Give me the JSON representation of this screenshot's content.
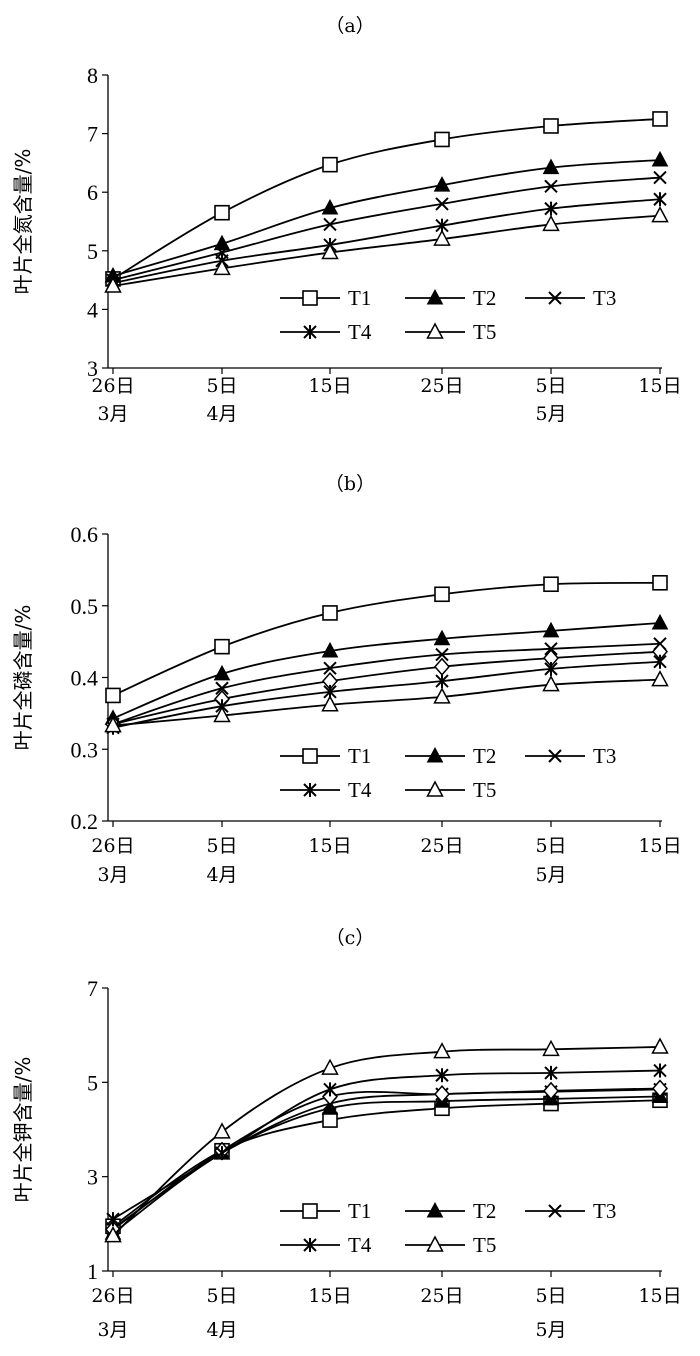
{
  "chart_data": [
    {
      "type": "line",
      "title": "（a）",
      "ylabel": "叶片全氮含量/%",
      "ylim": [
        3,
        8
      ],
      "yticks": [
        "3",
        "4",
        "5",
        "6",
        "7",
        "8"
      ],
      "x_tick_labels": [
        [
          "26日",
          "3月"
        ],
        [
          "5日",
          "4月"
        ],
        [
          "15日",
          ""
        ],
        [
          "25日",
          ""
        ],
        [
          "5日",
          "5月"
        ],
        [
          "15日",
          ""
        ]
      ],
      "x": [
        "3月26日",
        "4月5日",
        "4月15日",
        "4月25日",
        "5月5日",
        "5月15日"
      ],
      "legend_position": "center-right",
      "series": [
        {
          "name": "T1",
          "marker": "open-square",
          "values": [
            4.52,
            5.65,
            6.47,
            6.9,
            7.13,
            7.25
          ]
        },
        {
          "name": "T2",
          "marker": "filled-triangle",
          "values": [
            4.57,
            5.12,
            5.73,
            6.12,
            6.42,
            6.55
          ]
        },
        {
          "name": "T3",
          "marker": "cross",
          "values": [
            4.5,
            4.97,
            5.45,
            5.8,
            6.1,
            6.25
          ]
        },
        {
          "name": "T4",
          "marker": "asterisk",
          "values": [
            4.45,
            4.83,
            5.1,
            5.43,
            5.72,
            5.88
          ]
        },
        {
          "name": "T5",
          "marker": "open-triangle",
          "values": [
            4.4,
            4.7,
            4.97,
            5.2,
            5.45,
            5.6
          ]
        }
      ]
    },
    {
      "type": "line",
      "title": "（b）",
      "ylabel": "叶片全磷含量/%",
      "ylim": [
        0.2,
        0.6
      ],
      "yticks": [
        "0.2",
        "0.3",
        "0.4",
        "0.5",
        "0.6"
      ],
      "x_tick_labels": [
        [
          "26日",
          "3月"
        ],
        [
          "5日",
          "4月"
        ],
        [
          "15日",
          ""
        ],
        [
          "25日",
          ""
        ],
        [
          "5日",
          "5月"
        ],
        [
          "15日",
          ""
        ]
      ],
      "x": [
        "3月26日",
        "4月5日",
        "4月15日",
        "4月25日",
        "5月5日",
        "5月15日"
      ],
      "legend_position": "center-right",
      "series": [
        {
          "name": "T1",
          "marker": "open-square",
          "values": [
            0.375,
            0.443,
            0.49,
            0.516,
            0.53,
            0.532
          ]
        },
        {
          "name": "T2",
          "marker": "filled-triangle",
          "values": [
            0.343,
            0.405,
            0.437,
            0.454,
            0.465,
            0.476
          ]
        },
        {
          "name": "T3",
          "marker": "cross",
          "values": [
            0.335,
            0.385,
            0.413,
            0.432,
            0.44,
            0.447
          ]
        },
        {
          "name": "",
          "marker": "open-diamond",
          "values": [
            0.335,
            0.37,
            0.395,
            0.415,
            0.427,
            0.436
          ]
        },
        {
          "name": "T4",
          "marker": "asterisk",
          "values": [
            0.33,
            0.36,
            0.38,
            0.395,
            0.412,
            0.422
          ]
        },
        {
          "name": "T5",
          "marker": "open-triangle",
          "values": [
            0.333,
            0.347,
            0.362,
            0.373,
            0.39,
            0.397
          ]
        }
      ]
    },
    {
      "type": "line",
      "title": "（c）",
      "ylabel": "叶片全钾含量/%",
      "ylim": [
        1,
        7
      ],
      "yticks": [
        "1",
        "3",
        "5",
        "7"
      ],
      "x_tick_labels": [
        [
          "26日",
          "3月"
        ],
        [
          "5日",
          "4月"
        ],
        [
          "15日",
          ""
        ],
        [
          "25日",
          ""
        ],
        [
          "5日",
          "5月"
        ],
        [
          "15日",
          ""
        ]
      ],
      "x": [
        "3月26日",
        "4月5日",
        "4月15日",
        "4月25日",
        "5月5日",
        "5月15日"
      ],
      "legend_position": "center-right",
      "series": [
        {
          "name": "T1",
          "marker": "open-square",
          "values": [
            1.95,
            3.55,
            4.2,
            4.45,
            4.55,
            4.62
          ]
        },
        {
          "name": "T2",
          "marker": "filled-triangle",
          "values": [
            1.8,
            3.5,
            4.45,
            4.6,
            4.65,
            4.7
          ]
        },
        {
          "name": "T3",
          "marker": "cross",
          "values": [
            1.9,
            3.5,
            4.55,
            4.75,
            4.8,
            4.85
          ]
        },
        {
          "name": "",
          "marker": "open-diamond",
          "values": [
            1.88,
            3.55,
            4.7,
            4.75,
            4.82,
            4.87
          ]
        },
        {
          "name": "T4",
          "marker": "asterisk",
          "values": [
            2.1,
            3.5,
            4.85,
            5.15,
            5.2,
            5.25
          ]
        },
        {
          "name": "T5",
          "marker": "open-triangle",
          "values": [
            1.75,
            3.95,
            5.3,
            5.65,
            5.7,
            5.75
          ]
        }
      ]
    }
  ]
}
